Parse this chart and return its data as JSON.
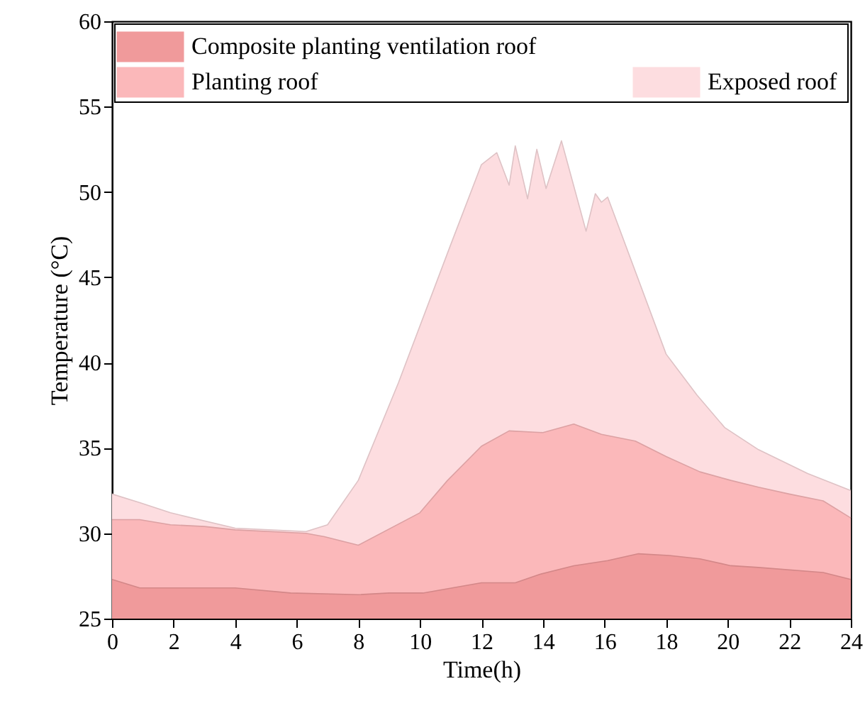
{
  "chart_data": {
    "type": "area",
    "xlabel": "Time(h)",
    "ylabel": "Temperature (°C)",
    "xlim": [
      0,
      24
    ],
    "xticks": [
      0,
      2,
      4,
      6,
      8,
      10,
      12,
      14,
      16,
      18,
      20,
      22,
      24
    ],
    "ylim": [
      25,
      60
    ],
    "yticks": [
      25,
      30,
      35,
      40,
      45,
      50,
      55,
      60
    ],
    "legend": "top",
    "grid": false,
    "series": [
      {
        "name": "Composite planting ventilation roof",
        "color": "#f09a9b",
        "x": [
          0,
          0.9,
          1.9,
          2.9,
          4,
          5.8,
          8,
          9,
          10.1,
          12,
          13.1,
          13.9,
          15,
          16.1,
          17.1,
          18.1,
          19.1,
          20.1,
          21,
          23.1,
          24
        ],
        "values": [
          27.3,
          26.8,
          26.8,
          26.8,
          26.8,
          26.5,
          26.4,
          26.5,
          26.5,
          27.1,
          27.1,
          27.6,
          28.1,
          28.4,
          28.8,
          28.7,
          28.5,
          28.1,
          28.0,
          27.7,
          27.3
        ]
      },
      {
        "name": "Planting roof",
        "color": "#fbb8ba",
        "x": [
          0,
          0.9,
          1.9,
          3,
          4,
          6.3,
          6.9,
          8,
          10,
          10.9,
          12,
          12.9,
          14,
          15,
          15.9,
          17,
          18,
          19.1,
          20.1,
          21,
          22,
          23.1,
          24
        ],
        "values": [
          30.8,
          30.8,
          30.5,
          30.4,
          30.2,
          30.0,
          29.8,
          29.3,
          31.2,
          33.1,
          35.1,
          36.0,
          35.9,
          36.4,
          35.8,
          35.4,
          34.5,
          33.6,
          33.1,
          32.7,
          32.3,
          31.9,
          30.9
        ]
      },
      {
        "name": "Exposed roof",
        "color": "#fddde0",
        "x": [
          0,
          0.9,
          1.9,
          4,
          6.3,
          7,
          8,
          9.3,
          11,
          12,
          12.5,
          12.9,
          13.1,
          13.5,
          13.8,
          14.1,
          14.6,
          15.4,
          15.7,
          15.9,
          16.1,
          18,
          19,
          19.9,
          21,
          22.6,
          24
        ],
        "values": [
          32.3,
          31.8,
          31.2,
          30.3,
          30.1,
          30.5,
          33.1,
          38.8,
          46.9,
          51.6,
          52.3,
          50.4,
          52.7,
          49.6,
          52.5,
          50.2,
          53.0,
          47.7,
          49.9,
          49.4,
          49.7,
          40.5,
          38.1,
          36.2,
          34.9,
          33.5,
          32.5
        ]
      }
    ]
  }
}
